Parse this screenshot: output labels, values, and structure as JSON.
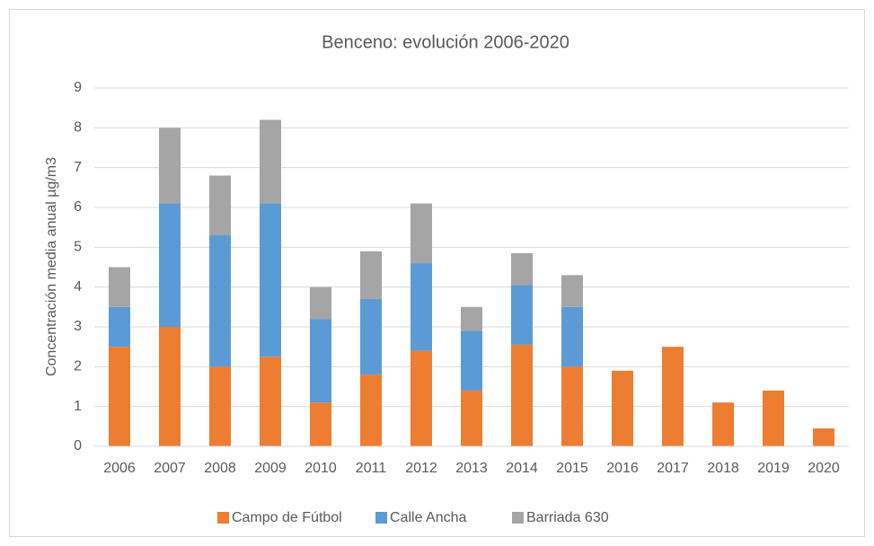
{
  "chart_data": {
    "type": "bar",
    "stacked": true,
    "title": "Benceno: evolución 2006-2020",
    "y_label": "Concentración media anual µg/m3",
    "categories": [
      "2006",
      "2007",
      "2008",
      "2009",
      "2010",
      "2011",
      "2012",
      "2013",
      "2014",
      "2015",
      "2016",
      "2017",
      "2018",
      "2019",
      "2020"
    ],
    "series": [
      {
        "name": "Campo de Fútbol",
        "color": "#ed7d31",
        "values": [
          2.5,
          3.0,
          2.0,
          2.25,
          1.1,
          1.8,
          2.4,
          1.4,
          2.55,
          2.0,
          1.9,
          2.5,
          1.1,
          1.4,
          0.45
        ]
      },
      {
        "name": "Calle Ancha",
        "color": "#5b9bd5",
        "values": [
          1.0,
          3.1,
          3.3,
          3.85,
          2.1,
          1.9,
          2.2,
          1.5,
          1.5,
          1.5,
          null,
          null,
          null,
          null,
          null
        ]
      },
      {
        "name": "Barriada 630",
        "color": "#a5a5a5",
        "values": [
          1.0,
          1.9,
          1.5,
          2.1,
          0.8,
          1.2,
          1.5,
          0.6,
          0.8,
          0.8,
          null,
          null,
          null,
          null,
          null
        ]
      }
    ],
    "ylim": [
      0,
      9
    ],
    "yticks": [
      0,
      1,
      2,
      3,
      4,
      5,
      6,
      7,
      8,
      9
    ],
    "grid": true,
    "legend": "bottom"
  }
}
